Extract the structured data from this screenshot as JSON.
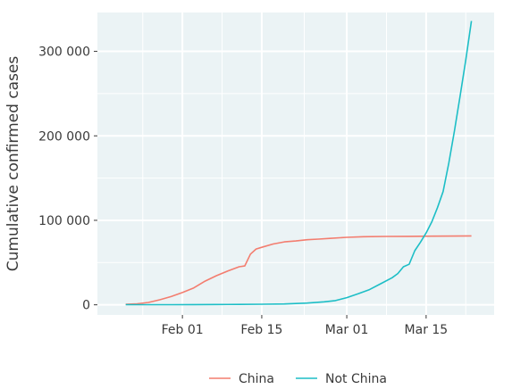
{
  "chart_data": {
    "type": "line",
    "xlabel": "",
    "ylabel": "Cumulative confirmed cases",
    "ylim": [
      -12000,
      346000
    ],
    "y_ticks": [
      0,
      100000,
      200000,
      300000
    ],
    "y_tick_labels": [
      "0",
      "100 000",
      "200 000",
      "300 000"
    ],
    "xlim": [
      "2020-01-17",
      "2020-03-27"
    ],
    "x_ticks": [
      "2020-02-01",
      "2020-02-15",
      "2020-03-01",
      "2020-03-15"
    ],
    "x_tick_labels": [
      "Feb 01",
      "Feb 15",
      "Mar 01",
      "Mar 15"
    ],
    "grid": true,
    "legend_position": "bottom",
    "colors": {
      "panel_background": "#ebf3f5",
      "grid": "#ffffff",
      "China": "#f37d6f",
      "Not China": "#1dbec6"
    },
    "series": [
      {
        "name": "China",
        "x": [
          "2020-01-22",
          "2020-01-24",
          "2020-01-26",
          "2020-01-28",
          "2020-01-30",
          "2020-02-01",
          "2020-02-03",
          "2020-02-05",
          "2020-02-07",
          "2020-02-09",
          "2020-02-11",
          "2020-02-12",
          "2020-02-13",
          "2020-02-14",
          "2020-02-15",
          "2020-02-17",
          "2020-02-19",
          "2020-02-21",
          "2020-02-23",
          "2020-02-25",
          "2020-02-27",
          "2020-03-01",
          "2020-03-04",
          "2020-03-08",
          "2020-03-12",
          "2020-03-16",
          "2020-03-20",
          "2020-03-23"
        ],
        "values": [
          550,
          1200,
          2800,
          6000,
          9800,
          14500,
          20000,
          28000,
          34500,
          40000,
          45000,
          46000,
          60000,
          66000,
          68000,
          72000,
          74500,
          75500,
          77000,
          77800,
          78600,
          79900,
          80600,
          80900,
          81000,
          81200,
          81400,
          81600
        ]
      },
      {
        "name": "Not China",
        "x": [
          "2020-01-22",
          "2020-01-26",
          "2020-01-30",
          "2020-02-03",
          "2020-02-07",
          "2020-02-11",
          "2020-02-15",
          "2020-02-19",
          "2020-02-23",
          "2020-02-26",
          "2020-02-28",
          "2020-03-01",
          "2020-03-03",
          "2020-03-05",
          "2020-03-07",
          "2020-03-09",
          "2020-03-10",
          "2020-03-11",
          "2020-03-12",
          "2020-03-13",
          "2020-03-14",
          "2020-03-15",
          "2020-03-16",
          "2020-03-17",
          "2020-03-18",
          "2020-03-19",
          "2020-03-20",
          "2020-03-21",
          "2020-03-22",
          "2020-03-23"
        ],
        "values": [
          100,
          120,
          150,
          250,
          350,
          500,
          700,
          1000,
          2000,
          3500,
          5000,
          8500,
          13000,
          18000,
          25000,
          32000,
          37000,
          45000,
          48000,
          64000,
          74000,
          85000,
          98000,
          115000,
          134000,
          168000,
          206000,
          247000,
          290000,
          336000
        ]
      }
    ]
  }
}
